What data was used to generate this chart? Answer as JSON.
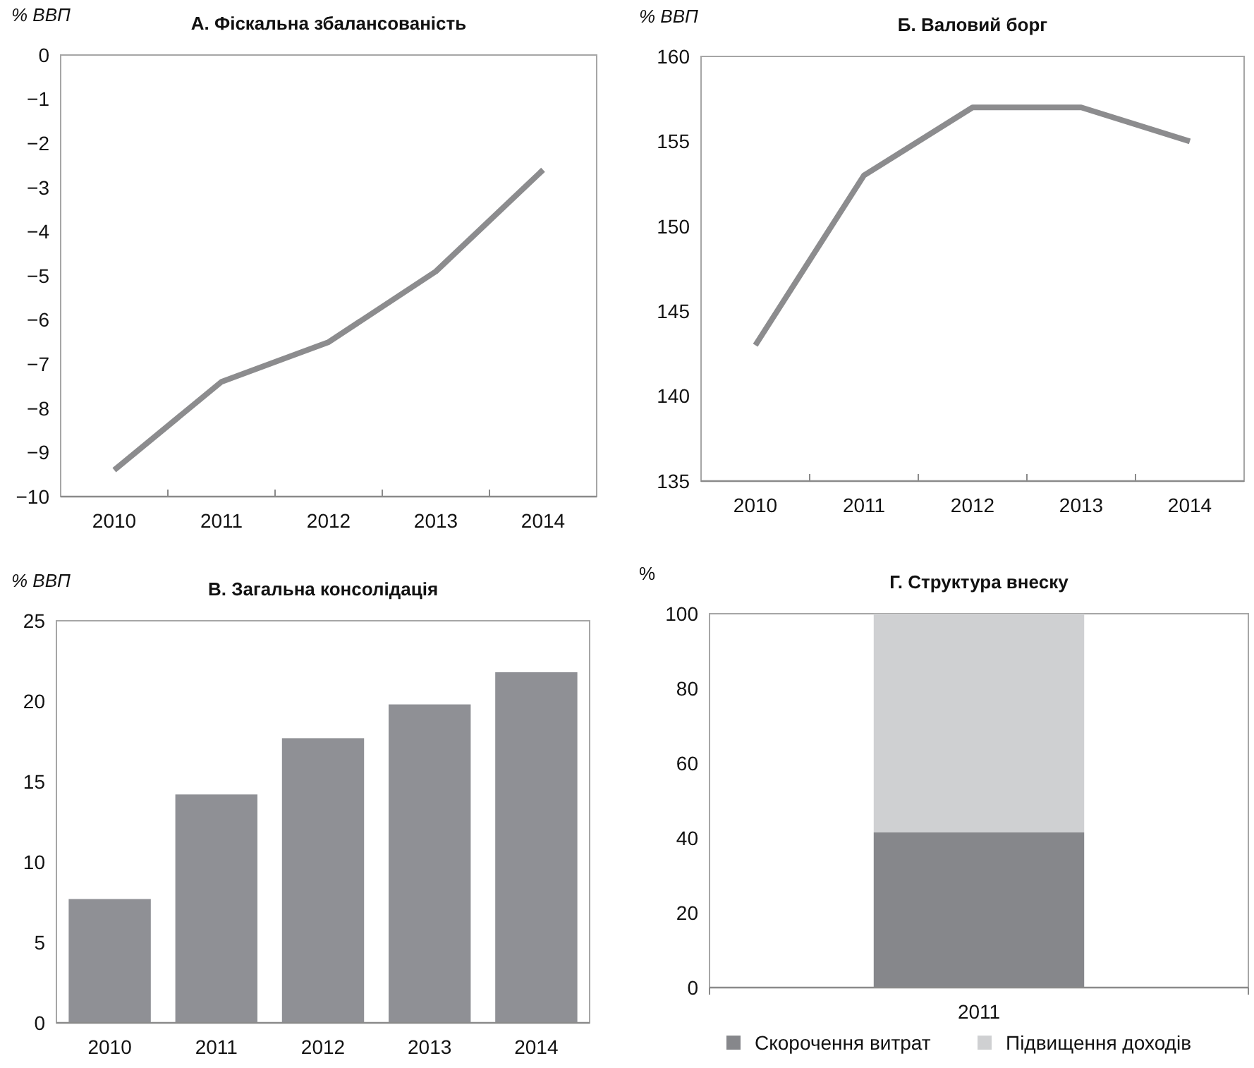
{
  "chart_data": [
    {
      "type": "line",
      "title": "А. Фіскальна збалансованість",
      "ylabel": "% ВВП",
      "categories": [
        "2010",
        "2011",
        "2012",
        "2013",
        "2014"
      ],
      "series": [
        {
          "color": "#8c8c8e",
          "values": [
            -9.4,
            -7.4,
            -6.5,
            -4.9,
            -2.6
          ]
        }
      ],
      "ylim": [
        -10,
        0
      ],
      "yticks": [
        {
          "value": -10,
          "label": "−10"
        },
        {
          "value": -9,
          "label": "−9"
        },
        {
          "value": -8,
          "label": "−8"
        },
        {
          "value": -7,
          "label": "−7"
        },
        {
          "value": -6,
          "label": "−6"
        },
        {
          "value": -5,
          "label": "−5"
        },
        {
          "value": -4,
          "label": "−4"
        },
        {
          "value": -3,
          "label": "−3"
        },
        {
          "value": -2,
          "label": "−2"
        },
        {
          "value": -1,
          "label": "−1"
        },
        0
      ],
      "grid": false,
      "marker": "none",
      "line_style": "solid"
    },
    {
      "type": "line",
      "title": "Б. Валовий борг",
      "ylabel": "% ВВП",
      "categories": [
        "2010",
        "2011",
        "2012",
        "2013",
        "2014"
      ],
      "series": [
        {
          "color": "#8c8c8e",
          "values": [
            143,
            153,
            157,
            157,
            155
          ]
        }
      ],
      "ylim": [
        135,
        160
      ],
      "yticks": [
        135,
        140,
        145,
        150,
        155,
        160
      ],
      "grid": false,
      "marker": "none",
      "line_style": "solid"
    },
    {
      "type": "bar",
      "title": "В. Загальна консолідація",
      "ylabel": "% ВВП",
      "categories": [
        "2010",
        "2011",
        "2012",
        "2013",
        "2014"
      ],
      "series": [
        {
          "color": "#8f9095",
          "values": [
            7.7,
            14.2,
            17.7,
            19.8,
            21.8
          ]
        }
      ],
      "ylim": [
        0,
        25
      ],
      "yticks": [
        0,
        5,
        10,
        15,
        20,
        25
      ],
      "grid": false
    },
    {
      "type": "bar",
      "title": "Г. Структура внеску",
      "ylabel": "%",
      "categories": [
        "2011"
      ],
      "stacked": true,
      "series": [
        {
          "name": "Скорочення витрат",
          "color": "#86878b",
          "values": [
            41.5
          ]
        },
        {
          "name": "Підвищення доходів",
          "color": "#cfd0d2",
          "values": [
            58.5
          ]
        }
      ],
      "ylim": [
        0,
        100
      ],
      "yticks": [
        0,
        20,
        40,
        60,
        80,
        100
      ],
      "grid": false,
      "legend": "bottom"
    }
  ]
}
